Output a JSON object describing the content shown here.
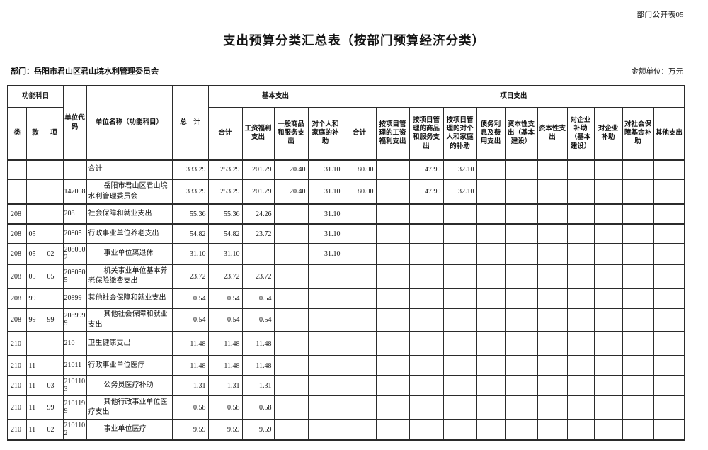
{
  "page": {
    "doc_code": "部门公开表05",
    "title": "支出预算分类汇总表（按部门预算经济分类）",
    "department": "部门：岳阳市君山区君山垸水利管理委员会",
    "unit_note": "金额单位：万元"
  },
  "table": {
    "header": {
      "func_group": "功能科目",
      "func_cols": [
        "类",
        "款",
        "项"
      ],
      "unit_code": "单位代码",
      "unit_name": "单位名称（功能科目）",
      "total": "总　计",
      "basic_group": "基本支出",
      "basic_cols": [
        "合计",
        "工资福利支出",
        "一般商品和服务支出",
        "对个人和家庭的补助"
      ],
      "project_group": "项目支出",
      "project_cols": [
        "合计",
        "按项目管理的工资福利支出",
        "按项目管理的商品和服务支出",
        "按项目管理的对个人和家庭的补助",
        "债务利息及费用支出",
        "资本性支出（基本建设）",
        "资本性支出",
        "对企业补助（基本建设）",
        "对企业补助",
        "对社会保障基金补助",
        "其他支出"
      ]
    },
    "rows": [
      {
        "indent": false,
        "cells": [
          "",
          "",
          "",
          "",
          "合计",
          "333.29",
          "253.29",
          "201.79",
          "20.40",
          "31.10",
          "80.00",
          "",
          "47.90",
          "32.10",
          "",
          "",
          "",
          "",
          "",
          "",
          ""
        ]
      },
      {
        "indent": true,
        "cells": [
          "",
          "",
          "",
          "147008",
          "岳阳市君山区君山垸水利管理委员会",
          "333.29",
          "253.29",
          "201.79",
          "20.40",
          "31.10",
          "80.00",
          "",
          "47.90",
          "32.10",
          "",
          "",
          "",
          "",
          "",
          "",
          ""
        ]
      },
      {
        "indent": false,
        "cells": [
          "208",
          "",
          "",
          "208",
          "社会保障和就业支出",
          "55.36",
          "55.36",
          "24.26",
          "",
          "31.10",
          "",
          "",
          "",
          "",
          "",
          "",
          "",
          "",
          "",
          "",
          ""
        ]
      },
      {
        "indent": false,
        "cells": [
          "208",
          "05",
          "",
          "20805",
          "行政事业单位养老支出",
          "54.82",
          "54.82",
          "23.72",
          "",
          "31.10",
          "",
          "",
          "",
          "",
          "",
          "",
          "",
          "",
          "",
          "",
          ""
        ]
      },
      {
        "indent": true,
        "cells": [
          "208",
          "05",
          "02",
          "2080502",
          "事业单位离退休",
          "31.10",
          "31.10",
          "",
          "",
          "31.10",
          "",
          "",
          "",
          "",
          "",
          "",
          "",
          "",
          "",
          "",
          ""
        ]
      },
      {
        "indent": true,
        "cells": [
          "208",
          "05",
          "05",
          "2080505",
          "机关事业单位基本养老保险缴费支出",
          "23.72",
          "23.72",
          "23.72",
          "",
          "",
          "",
          "",
          "",
          "",
          "",
          "",
          "",
          "",
          "",
          "",
          ""
        ]
      },
      {
        "indent": false,
        "cells": [
          "208",
          "99",
          "",
          "20899",
          "其他社会保障和就业支出",
          "0.54",
          "0.54",
          "0.54",
          "",
          "",
          "",
          "",
          "",
          "",
          "",
          "",
          "",
          "",
          "",
          "",
          ""
        ]
      },
      {
        "indent": true,
        "cells": [
          "208",
          "99",
          "99",
          "2089999",
          "其他社会保障和就业支出",
          "0.54",
          "0.54",
          "0.54",
          "",
          "",
          "",
          "",
          "",
          "",
          "",
          "",
          "",
          "",
          "",
          "",
          ""
        ]
      },
      {
        "indent": false,
        "cells": [
          "210",
          "",
          "",
          "210",
          "卫生健康支出",
          "11.48",
          "11.48",
          "11.48",
          "",
          "",
          "",
          "",
          "",
          "",
          "",
          "",
          "",
          "",
          "",
          "",
          ""
        ]
      },
      {
        "indent": false,
        "cells": [
          "210",
          "11",
          "",
          "21011",
          "行政事业单位医疗",
          "11.48",
          "11.48",
          "11.48",
          "",
          "",
          "",
          "",
          "",
          "",
          "",
          "",
          "",
          "",
          "",
          "",
          ""
        ]
      },
      {
        "indent": true,
        "cells": [
          "210",
          "11",
          "03",
          "2101103",
          "公务员医疗补助",
          "1.31",
          "1.31",
          "1.31",
          "",
          "",
          "",
          "",
          "",
          "",
          "",
          "",
          "",
          "",
          "",
          "",
          ""
        ]
      },
      {
        "indent": true,
        "cells": [
          "210",
          "11",
          "99",
          "2101199",
          "其他行政事业单位医疗支出",
          "0.58",
          "0.58",
          "0.58",
          "",
          "",
          "",
          "",
          "",
          "",
          "",
          "",
          "",
          "",
          "",
          "",
          ""
        ]
      },
      {
        "indent": true,
        "cells": [
          "210",
          "11",
          "02",
          "2101102",
          "事业单位医疗",
          "9.59",
          "9.59",
          "9.59",
          "",
          "",
          "",
          "",
          "",
          "",
          "",
          "",
          "",
          "",
          "",
          "",
          ""
        ]
      }
    ]
  }
}
